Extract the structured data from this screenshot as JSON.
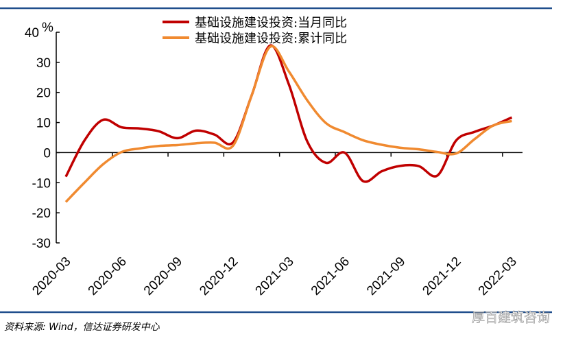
{
  "chart_data": {
    "type": "line",
    "ylabel": "%",
    "ylim": [
      -30,
      40
    ],
    "yticks": [
      40,
      30,
      20,
      10,
      0,
      -10,
      -20,
      -30
    ],
    "x": [
      "2020-03",
      "2020-04",
      "2020-05",
      "2020-06",
      "2020-07",
      "2020-08",
      "2020-09",
      "2020-10",
      "2020-11",
      "2020-12",
      "2021-01",
      "2021-02",
      "2021-03",
      "2021-04",
      "2021-05",
      "2021-06",
      "2021-07",
      "2021-08",
      "2021-09",
      "2021-10",
      "2021-11",
      "2021-12",
      "2022-01",
      "2022-02",
      "2022-03"
    ],
    "xtick_labels": [
      "2020-03",
      "2020-06",
      "2020-09",
      "2020-12",
      "2021-03",
      "2021-06",
      "2021-09",
      "2021-12",
      "2022-03"
    ],
    "grid": false,
    "legend_placement": "top",
    "series": [
      {
        "name": "基础设施建设投资:当月同比",
        "color": "#C00000",
        "values": [
          -8,
          4,
          10.9,
          8.4,
          8,
          7.1,
          4.8,
          7.3,
          6,
          3.4,
          19,
          35.6,
          22.7,
          3.6,
          -3.4,
          0,
          -9.5,
          -6.2,
          -4.4,
          -4.5,
          -7.6,
          4,
          6.9,
          9,
          11.7
        ]
      },
      {
        "name": "基础设施建设投资:累计同比",
        "color": "#F08A30",
        "values": [
          -16.4,
          -10,
          -3.9,
          0.2,
          1.4,
          2.2,
          2.5,
          3.1,
          3.3,
          2.3,
          19,
          35.2,
          27,
          17.3,
          9.8,
          6.8,
          4.1,
          2.6,
          1.6,
          1.1,
          0.2,
          -0.3,
          4.5,
          9,
          10.5
        ]
      }
    ]
  },
  "footer": {
    "source": "资料来源: Wind，信达证券研发中心",
    "watermark": "厚百建筑咨询"
  },
  "colors": {
    "frame_line": "#1F4E8C"
  }
}
